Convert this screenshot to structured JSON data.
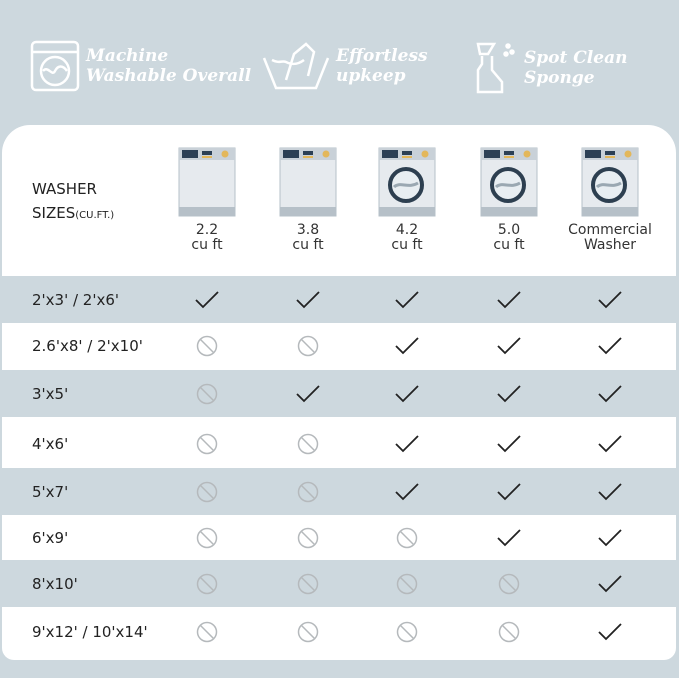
{
  "features": [
    {
      "icon": "washing-machine-icon",
      "label_line1": "Machine",
      "label_line2": "Washable Overall"
    },
    {
      "icon": "hand-wash-icon",
      "label_line1": "Effortless",
      "label_line2": "upkeep"
    },
    {
      "icon": "spray-bottle-icon",
      "label_line1": "Spot Clean",
      "label_line2": "Sponge"
    }
  ],
  "table": {
    "header_label": "WASHER",
    "header_label2": "SIZES",
    "header_unit": "(CU.FT.)",
    "columns": [
      {
        "line1": "2.2",
        "line2": "cu ft",
        "drum": false
      },
      {
        "line1": "3.8",
        "line2": "cu ft",
        "drum": false
      },
      {
        "line1": "4.2",
        "line2": "cu ft",
        "drum": true
      },
      {
        "line1": "5.0",
        "line2": "cu ft",
        "drum": true
      },
      {
        "line1": "Commercial",
        "line2": "Washer",
        "drum": true
      }
    ],
    "rows": [
      {
        "size": "2'x3'  / 2'x6'",
        "fits": [
          true,
          true,
          true,
          true,
          true
        ]
      },
      {
        "size": "2.6'x8' / 2'x10'",
        "fits": [
          false,
          false,
          true,
          true,
          true
        ]
      },
      {
        "size": "3'x5'",
        "fits": [
          false,
          true,
          true,
          true,
          true
        ]
      },
      {
        "size": "4'x6'",
        "fits": [
          false,
          false,
          true,
          true,
          true
        ]
      },
      {
        "size": "5'x7'",
        "fits": [
          false,
          false,
          true,
          true,
          true
        ]
      },
      {
        "size": "6'x9'",
        "fits": [
          false,
          false,
          false,
          true,
          true
        ]
      },
      {
        "size": "8'x10'",
        "fits": [
          false,
          false,
          false,
          false,
          true
        ]
      },
      {
        "size": "9'x12' / 10'x14'",
        "fits": [
          false,
          false,
          false,
          false,
          true
        ]
      }
    ]
  },
  "colors": {
    "background": "#cdd8de",
    "card": "#ffffff",
    "check": "#222222",
    "not": "#b5b9bc"
  }
}
